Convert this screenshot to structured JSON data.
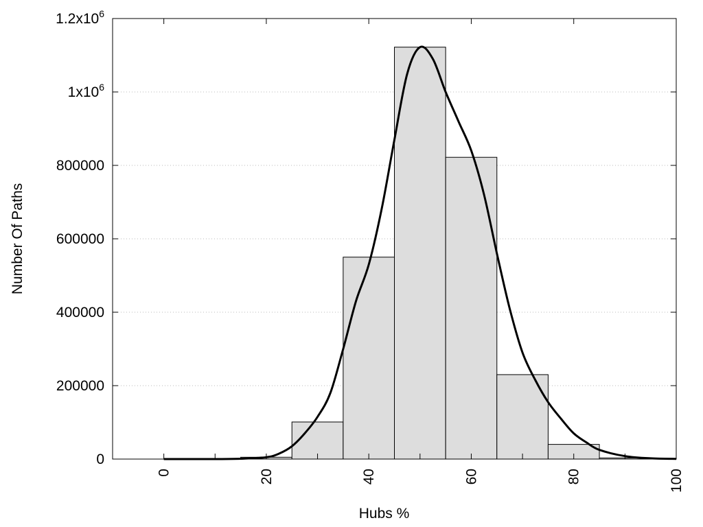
{
  "chart_data": {
    "type": "bar",
    "title": "",
    "xlabel": "Hubs %",
    "ylabel": "Number Of Paths",
    "xlim": [
      -10,
      100
    ],
    "ylim": [
      0,
      1200000
    ],
    "grid": true,
    "colors": {
      "bar_fill": "#dddddd",
      "bar_stroke": "#000000",
      "curve": "#000000"
    },
    "x_ticks": [
      {
        "value": 0,
        "label": "0"
      },
      {
        "value": 20,
        "label": "20"
      },
      {
        "value": 40,
        "label": "40"
      },
      {
        "value": 60,
        "label": "60"
      },
      {
        "value": 80,
        "label": "80"
      },
      {
        "value": 100,
        "label": "100"
      }
    ],
    "y_ticks": [
      {
        "value": 0,
        "label": "0",
        "exp": ""
      },
      {
        "value": 200000,
        "label": "200000",
        "exp": ""
      },
      {
        "value": 400000,
        "label": "400000",
        "exp": ""
      },
      {
        "value": 600000,
        "label": "600000",
        "exp": ""
      },
      {
        "value": 800000,
        "label": "800000",
        "exp": ""
      },
      {
        "value": 1000000,
        "label": "1x10",
        "exp": "6"
      },
      {
        "value": 1200000,
        "label": "1.2x10",
        "exp": "6"
      }
    ],
    "bins": [
      {
        "x0": 15,
        "x1": 25,
        "value": 5000
      },
      {
        "x0": 25,
        "x1": 35,
        "value": 101000
      },
      {
        "x0": 35,
        "x1": 45,
        "value": 550000
      },
      {
        "x0": 45,
        "x1": 55,
        "value": 1122000
      },
      {
        "x0": 55,
        "x1": 65,
        "value": 822000
      },
      {
        "x0": 65,
        "x1": 75,
        "value": 230000
      },
      {
        "x0": 75,
        "x1": 85,
        "value": 40000
      },
      {
        "x0": 85,
        "x1": 95,
        "value": 3000
      }
    ],
    "curve": {
      "x": [
        0,
        10,
        15,
        20,
        22.5,
        25,
        27.5,
        30,
        32.5,
        35,
        37.5,
        40,
        42.5,
        45,
        47.5,
        50,
        52.5,
        55,
        57.5,
        60,
        62.5,
        65,
        67.5,
        70,
        72.5,
        75,
        77.5,
        80,
        82.5,
        85,
        90,
        95,
        100
      ],
      "y": [
        0,
        0,
        1000,
        5000,
        15000,
        35000,
        70000,
        115000,
        180000,
        300000,
        430000,
        530000,
        680000,
        870000,
        1050000,
        1122000,
        1090000,
        1000000,
        920000,
        840000,
        720000,
        560000,
        410000,
        290000,
        215000,
        155000,
        110000,
        70000,
        45000,
        25000,
        8000,
        2000,
        500
      ]
    }
  }
}
